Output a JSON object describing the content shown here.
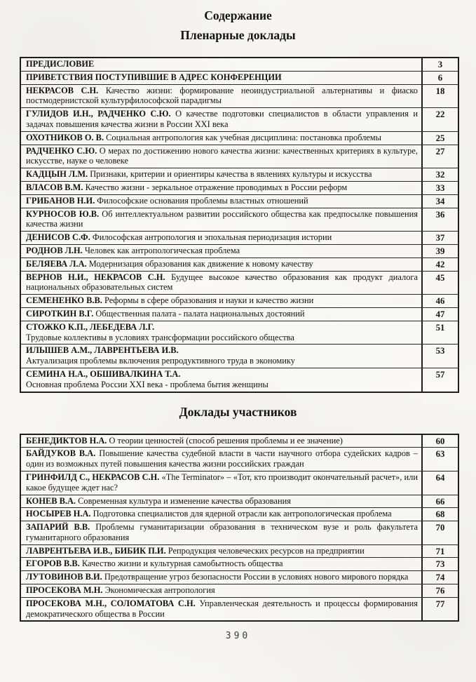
{
  "document": {
    "title": "Содержание",
    "plenary_section_title": "Пленарные доклады",
    "participants_section_title": "Доклады участников",
    "footer_page_number": "390"
  },
  "colors": {
    "paper": "#f7f6f3",
    "ink": "#141414",
    "table_border": "#1e1e1e"
  },
  "plenary_rows": [
    {
      "authors": "ПРЕДИСЛОВИЕ",
      "title": "",
      "page": "3"
    },
    {
      "authors": "ПРИВЕТСТВИЯ ПОСТУПИВШИЕ В АДРЕС КОНФЕРЕНЦИИ",
      "title": "",
      "page": "6"
    },
    {
      "authors": "НЕКРАСОВ С.Н.",
      "title": "Качество жизни: формирование неоиндустриальной альтернативы и фиаско постмодернистской культурфилософской парадигмы",
      "page": "18"
    },
    {
      "authors": "ГУЛИДОВ И.Н., РАДЧЕНКО С.Ю.",
      "title": "О качестве подготовки специалистов в области управления и задачах повышения качества жизни в России XXI века",
      "page": "22"
    },
    {
      "authors": "ОХОТНИКОВ О. В.",
      "title": "Социальная антропология как учебная дисциплина: постановка проблемы",
      "page": "25"
    },
    {
      "authors": "РАДЧЕНКО С.Ю.",
      "title": "О мерах по достижению нового качества жизни: качественных критериях в культуре, искусстве, науке о человеке",
      "page": "27"
    },
    {
      "authors": "КАДЦЫН Л.М.",
      "title": "Признаки, критерии и ориентиры качества в явлениях культуры и искусства",
      "page": "32"
    },
    {
      "authors": "ВЛАСОВ В.М.",
      "title": "Качество жизни - зеркальное отражение проводимых в России реформ",
      "page": "33"
    },
    {
      "authors": "ГРИБАНОВ Н.И.",
      "title": "Философские основания проблемы властных отношений",
      "page": "34"
    },
    {
      "authors": "КУРНОСОВ Ю.В.",
      "title": "Об интеллектуальном развитии российского общества как предпосылке повышения качества жизни",
      "page": "36"
    },
    {
      "authors": "ДЕНИСОВ С.Ф.",
      "title": "Философская антропология и эпохальная периодизация истории",
      "page": "37"
    },
    {
      "authors": "РОДНОВ Л.Н.",
      "title": "Человек как антропологическая проблема",
      "page": "39"
    },
    {
      "authors": "БЕЛЯЕВА Л.А.",
      "title": "Модернизация образования как движение к новому качеству",
      "page": "42"
    },
    {
      "authors": "ВЕРНОВ Н.И., НЕКРАСОВ С.Н.",
      "title": "Будущее высокое качество образования как продукт диалога национальных образовательных систем",
      "page": "45"
    },
    {
      "authors": "СЕМЕНЕНКО В.В.",
      "title": "Реформы в сфере образования и науки и качество жизни",
      "page": "46"
    },
    {
      "authors": "СИРОТКИН В.Г.",
      "title": "Общественная палата - палата национальных достояний",
      "page": "47"
    },
    {
      "authors": "СТОЖКО К.П., ЛЕБЕДЕВА Л.Г.",
      "title": "Трудовые коллективы в условиях трансформации российского общества",
      "page": "51",
      "authors_own_line": true
    },
    {
      "authors": "ИЛЫШЕВ А.М., ЛАВРЕНТЬЕВА И.В.",
      "title": "Актуализация проблемы включения репродуктивного труда в экономику",
      "page": "53",
      "authors_own_line": true
    },
    {
      "authors": "СЕМИНА Н.А., ОБШИВАЛКИНА Т.А.",
      "title": "Основная проблема России XXI века - проблема бытия женщины",
      "page": "57",
      "authors_own_line": true
    }
  ],
  "participant_rows": [
    {
      "authors": "БЕНЕДИКТОВ Н.А.",
      "title": "О теории ценностей (способ решения проблемы и ее значение)",
      "page": "60"
    },
    {
      "authors": "БАЙДУКОВ В.А.",
      "title": "Повышение качества судебной власти в части научного отбора судейских кадров – один из возможных путей повышения качества жизни российских граждан",
      "page": "63"
    },
    {
      "authors": "ГРИНФИЛД С., НЕКРАСОВ С.Н.",
      "title": "«The Terminator» – «Тот, кто производит окончательный расчет», или какое будущее ждет нас?",
      "page": "64"
    },
    {
      "authors": "КОНЕВ В.А.",
      "title": "Современная культура и изменение качества образования",
      "page": "66"
    },
    {
      "authors": "НОСЫРЕВ Н.А.",
      "title": "Подготовка специалистов для ядерной отрасли как антропологическая проблема",
      "page": "68"
    },
    {
      "authors": "ЗАПАРИЙ В.В.",
      "title": "Проблемы гуманитаризации образования в техническом вузе и роль факультета гуманитарного образования",
      "page": "70"
    },
    {
      "authors": "ЛАВРЕНТЬЕВА И.В., БИБИК П.И.",
      "title": "Репродукция человеческих ресурсов на предприятии",
      "page": "71"
    },
    {
      "authors": "ЕГОРОВ В.В.",
      "title": "Качество жизни и культурная самобытность общества",
      "page": "73"
    },
    {
      "authors": "ЛУТОВИНОВ В.И.",
      "title": "Предотвращение угроз безопасности России в условиях нового мирового порядка",
      "page": "74"
    },
    {
      "authors": "ПРОСЕКОВА М.Н.",
      "title": "Экономическая антропология",
      "page": "76"
    },
    {
      "authors": "ПРОСЕКОВА М.Н., СОЛОМАТОВА С.Н.",
      "title": "Управленческая деятельность и процессы формирования демократического общества в России",
      "page": "77"
    }
  ]
}
